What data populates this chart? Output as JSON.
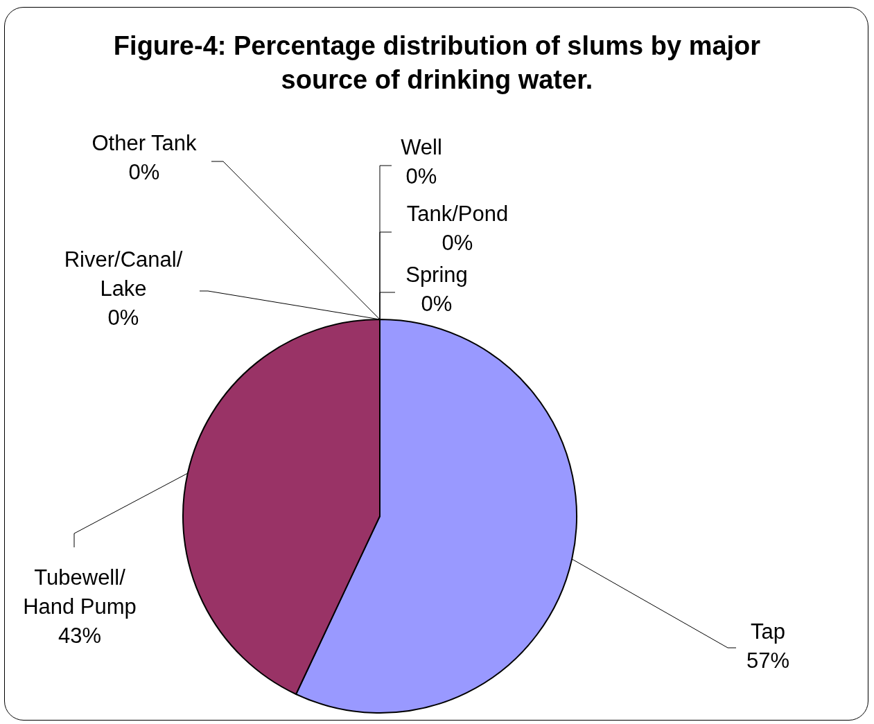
{
  "chart_data": {
    "type": "pie",
    "title": "Figure-4: Percentage distribution of slums by major source of drinking water.",
    "categories": [
      "Tap",
      "Tubewell/\nHand Pump",
      "River/Canal/\nLake",
      "Other Tank",
      "Well",
      "Tank/Pond",
      "Spring"
    ],
    "values": [
      57,
      43,
      0,
      0,
      0,
      0,
      0
    ],
    "value_labels": [
      "57%",
      "43%",
      "0%",
      "0%",
      "0%",
      "0%",
      "0%"
    ],
    "colors": [
      "#9999ff",
      "#993366",
      "#ffffcc",
      "#ccffff",
      "#660066",
      "#ff8080",
      "#0066cc"
    ],
    "legend": false
  }
}
